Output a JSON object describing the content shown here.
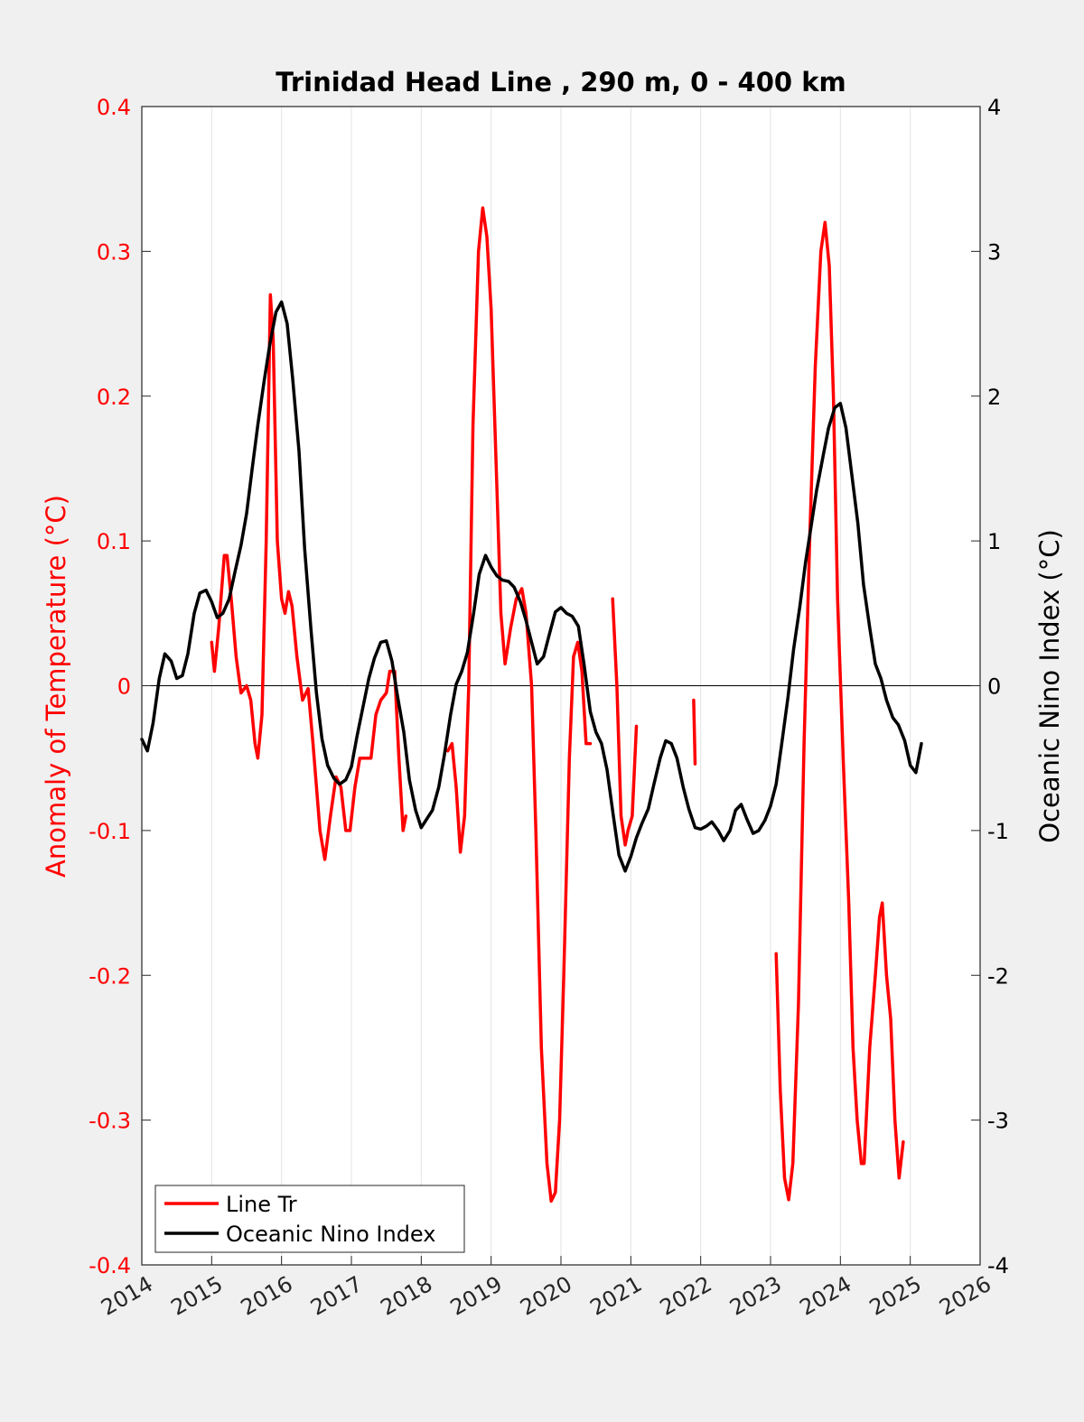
{
  "chart_data": {
    "type": "line",
    "title": "Trinidad Head Line , 290 m, 0 - 400 km",
    "xlim": [
      2014,
      2026
    ],
    "x_ticks": [
      "2014",
      "2015",
      "2016",
      "2017",
      "2018",
      "2019",
      "2020",
      "2021",
      "2022",
      "2023",
      "2024",
      "2025",
      "2026"
    ],
    "grid": "vertical",
    "legend_position": "bottom-left",
    "left_axis": {
      "label": "Anomaly of Temperature (°C)",
      "ylim": [
        -0.4,
        0.4
      ],
      "ticks": [
        "-0.4",
        "-0.3",
        "-0.2",
        "-0.1",
        "0",
        "0.1",
        "0.2",
        "0.3",
        "0.4"
      ],
      "color": "#ff0000"
    },
    "right_axis": {
      "label": "Oceanic Nino Index (°C)",
      "ylim": [
        -4,
        4
      ],
      "ticks": [
        "-4",
        "-3",
        "-2",
        "-1",
        "0",
        "1",
        "2",
        "3",
        "4"
      ],
      "color": "#000000"
    },
    "series": [
      {
        "name": "Line Tr",
        "axis": "left",
        "color": "#ff0000",
        "segments": [
          [
            [
              2015.0,
              0.03
            ],
            [
              2015.04,
              0.01
            ],
            [
              2015.1,
              0.04
            ],
            [
              2015.18,
              0.09
            ],
            [
              2015.22,
              0.09
            ],
            [
              2015.28,
              0.06
            ],
            [
              2015.35,
              0.02
            ],
            [
              2015.42,
              -0.005
            ],
            [
              2015.5,
              0.0
            ],
            [
              2015.56,
              -0.01
            ],
            [
              2015.62,
              -0.04
            ],
            [
              2015.66,
              -0.05
            ],
            [
              2015.72,
              -0.02
            ],
            [
              2015.78,
              0.1
            ],
            [
              2015.84,
              0.27
            ],
            [
              2015.88,
              0.24
            ],
            [
              2015.94,
              0.1
            ],
            [
              2016.0,
              0.06
            ],
            [
              2016.05,
              0.05
            ],
            [
              2016.1,
              0.065
            ],
            [
              2016.15,
              0.055
            ],
            [
              2016.22,
              0.02
            ],
            [
              2016.3,
              -0.01
            ],
            [
              2016.38,
              -0.002
            ],
            [
              2016.45,
              -0.04
            ],
            [
              2016.55,
              -0.1
            ],
            [
              2016.62,
              -0.12
            ],
            [
              2016.7,
              -0.09
            ],
            [
              2016.78,
              -0.063
            ],
            [
              2016.85,
              -0.07
            ],
            [
              2016.92,
              -0.1
            ],
            [
              2016.98,
              -0.1
            ],
            [
              2017.05,
              -0.07
            ],
            [
              2017.12,
              -0.05
            ],
            [
              2017.2,
              -0.05
            ],
            [
              2017.28,
              -0.05
            ],
            [
              2017.35,
              -0.02
            ],
            [
              2017.42,
              -0.01
            ],
            [
              2017.5,
              -0.005
            ],
            [
              2017.55,
              0.01
            ],
            [
              2017.62,
              0.01
            ],
            [
              2017.68,
              -0.05
            ],
            [
              2017.74,
              -0.1
            ],
            [
              2017.78,
              -0.09
            ]
          ],
          [
            [
              2018.38,
              -0.045
            ],
            [
              2018.44,
              -0.04
            ],
            [
              2018.5,
              -0.07
            ],
            [
              2018.56,
              -0.115
            ],
            [
              2018.62,
              -0.09
            ],
            [
              2018.68,
              0.0
            ],
            [
              2018.74,
              0.18
            ],
            [
              2018.82,
              0.3
            ],
            [
              2018.88,
              0.33
            ],
            [
              2018.94,
              0.31
            ],
            [
              2019.0,
              0.26
            ],
            [
              2019.08,
              0.14
            ],
            [
              2019.14,
              0.05
            ],
            [
              2019.2,
              0.015
            ],
            [
              2019.28,
              0.04
            ],
            [
              2019.36,
              0.06
            ],
            [
              2019.44,
              0.067
            ],
            [
              2019.5,
              0.05
            ],
            [
              2019.58,
              0.0
            ],
            [
              2019.64,
              -0.1
            ],
            [
              2019.72,
              -0.25
            ],
            [
              2019.8,
              -0.33
            ],
            [
              2019.86,
              -0.356
            ],
            [
              2019.92,
              -0.35
            ],
            [
              2019.98,
              -0.3
            ],
            [
              2020.04,
              -0.2
            ],
            [
              2020.12,
              -0.05
            ],
            [
              2020.18,
              0.02
            ],
            [
              2020.24,
              0.03
            ],
            [
              2020.3,
              0.01
            ],
            [
              2020.36,
              -0.04
            ],
            [
              2020.42,
              -0.04
            ]
          ],
          [
            [
              2020.74,
              0.06
            ],
            [
              2020.8,
              0.0
            ],
            [
              2020.86,
              -0.09
            ],
            [
              2020.92,
              -0.11
            ],
            [
              2020.96,
              -0.1
            ],
            [
              2021.02,
              -0.09
            ],
            [
              2021.08,
              -0.028
            ]
          ],
          [
            [
              2021.9,
              -0.01
            ],
            [
              2021.92,
              -0.054
            ]
          ],
          [
            [
              2023.08,
              -0.185
            ],
            [
              2023.14,
              -0.28
            ],
            [
              2023.2,
              -0.34
            ],
            [
              2023.26,
              -0.355
            ],
            [
              2023.32,
              -0.33
            ],
            [
              2023.4,
              -0.22
            ],
            [
              2023.48,
              -0.04
            ],
            [
              2023.56,
              0.1
            ],
            [
              2023.64,
              0.22
            ],
            [
              2023.72,
              0.3
            ],
            [
              2023.78,
              0.32
            ],
            [
              2023.84,
              0.29
            ],
            [
              2023.9,
              0.2
            ],
            [
              2023.96,
              0.06
            ],
            [
              2024.04,
              -0.05
            ],
            [
              2024.12,
              -0.15
            ],
            [
              2024.18,
              -0.25
            ],
            [
              2024.24,
              -0.3
            ],
            [
              2024.3,
              -0.33
            ],
            [
              2024.34,
              -0.33
            ],
            [
              2024.42,
              -0.25
            ],
            [
              2024.5,
              -0.2
            ],
            [
              2024.56,
              -0.16
            ],
            [
              2024.6,
              -0.15
            ],
            [
              2024.66,
              -0.2
            ],
            [
              2024.72,
              -0.23
            ],
            [
              2024.78,
              -0.3
            ],
            [
              2024.84,
              -0.34
            ],
            [
              2024.9,
              -0.315
            ]
          ]
        ]
      },
      {
        "name": "Oceanic Nino Index",
        "axis": "right",
        "color": "#000000",
        "segments": [
          [
            [
              2014.0,
              -0.37
            ],
            [
              2014.08,
              -0.45
            ],
            [
              2014.16,
              -0.26
            ],
            [
              2014.25,
              0.05
            ],
            [
              2014.33,
              0.22
            ],
            [
              2014.42,
              0.17
            ],
            [
              2014.5,
              0.05
            ],
            [
              2014.58,
              0.07
            ],
            [
              2014.66,
              0.22
            ],
            [
              2014.75,
              0.5
            ],
            [
              2014.83,
              0.64
            ],
            [
              2014.92,
              0.66
            ],
            [
              2015.0,
              0.58
            ],
            [
              2015.08,
              0.47
            ],
            [
              2015.16,
              0.5
            ],
            [
              2015.25,
              0.6
            ],
            [
              2015.33,
              0.78
            ],
            [
              2015.42,
              0.97
            ],
            [
              2015.5,
              1.19
            ],
            [
              2015.58,
              1.5
            ],
            [
              2015.66,
              1.8
            ],
            [
              2015.75,
              2.1
            ],
            [
              2015.83,
              2.35
            ],
            [
              2015.92,
              2.58
            ],
            [
              2016.0,
              2.65
            ],
            [
              2016.08,
              2.5
            ],
            [
              2016.16,
              2.12
            ],
            [
              2016.25,
              1.62
            ],
            [
              2016.33,
              0.95
            ],
            [
              2016.42,
              0.4
            ],
            [
              2016.5,
              -0.05
            ],
            [
              2016.58,
              -0.37
            ],
            [
              2016.66,
              -0.55
            ],
            [
              2016.75,
              -0.64
            ],
            [
              2016.83,
              -0.68
            ],
            [
              2016.92,
              -0.65
            ],
            [
              2017.0,
              -0.56
            ],
            [
              2017.08,
              -0.35
            ],
            [
              2017.16,
              -0.16
            ],
            [
              2017.25,
              0.05
            ],
            [
              2017.33,
              0.19
            ],
            [
              2017.42,
              0.3
            ],
            [
              2017.5,
              0.31
            ],
            [
              2017.58,
              0.17
            ],
            [
              2017.66,
              -0.07
            ],
            [
              2017.75,
              -0.32
            ],
            [
              2017.83,
              -0.65
            ],
            [
              2017.92,
              -0.86
            ],
            [
              2018.0,
              -0.98
            ],
            [
              2018.08,
              -0.92
            ],
            [
              2018.16,
              -0.86
            ],
            [
              2018.25,
              -0.7
            ],
            [
              2018.33,
              -0.48
            ],
            [
              2018.42,
              -0.2
            ],
            [
              2018.5,
              0.01
            ],
            [
              2018.58,
              0.1
            ],
            [
              2018.66,
              0.23
            ],
            [
              2018.75,
              0.5
            ],
            [
              2018.83,
              0.77
            ],
            [
              2018.92,
              0.9
            ],
            [
              2019.0,
              0.82
            ],
            [
              2019.08,
              0.76
            ],
            [
              2019.16,
              0.73
            ],
            [
              2019.25,
              0.72
            ],
            [
              2019.33,
              0.68
            ],
            [
              2019.42,
              0.58
            ],
            [
              2019.5,
              0.45
            ],
            [
              2019.58,
              0.3
            ],
            [
              2019.66,
              0.15
            ],
            [
              2019.75,
              0.2
            ],
            [
              2019.83,
              0.35
            ],
            [
              2019.92,
              0.51
            ],
            [
              2020.0,
              0.54
            ],
            [
              2020.08,
              0.5
            ],
            [
              2020.16,
              0.48
            ],
            [
              2020.25,
              0.41
            ],
            [
              2020.33,
              0.15
            ],
            [
              2020.42,
              -0.18
            ],
            [
              2020.5,
              -0.32
            ],
            [
              2020.58,
              -0.4
            ],
            [
              2020.66,
              -0.58
            ],
            [
              2020.75,
              -0.9
            ],
            [
              2020.83,
              -1.17
            ],
            [
              2020.92,
              -1.28
            ],
            [
              2021.0,
              -1.18
            ],
            [
              2021.08,
              -1.05
            ],
            [
              2021.16,
              -0.95
            ],
            [
              2021.25,
              -0.85
            ],
            [
              2021.33,
              -0.68
            ],
            [
              2021.42,
              -0.5
            ],
            [
              2021.5,
              -0.38
            ],
            [
              2021.58,
              -0.4
            ],
            [
              2021.66,
              -0.5
            ],
            [
              2021.75,
              -0.7
            ],
            [
              2021.83,
              -0.85
            ],
            [
              2021.92,
              -0.98
            ],
            [
              2022.0,
              -0.99
            ],
            [
              2022.08,
              -0.97
            ],
            [
              2022.16,
              -0.94
            ],
            [
              2022.25,
              -1.0
            ],
            [
              2022.33,
              -1.07
            ],
            [
              2022.42,
              -1.0
            ],
            [
              2022.5,
              -0.86
            ],
            [
              2022.58,
              -0.82
            ],
            [
              2022.66,
              -0.92
            ],
            [
              2022.75,
              -1.02
            ],
            [
              2022.83,
              -1.0
            ],
            [
              2022.92,
              -0.93
            ],
            [
              2023.0,
              -0.83
            ],
            [
              2023.08,
              -0.68
            ],
            [
              2023.16,
              -0.4
            ],
            [
              2023.25,
              -0.08
            ],
            [
              2023.33,
              0.25
            ],
            [
              2023.42,
              0.55
            ],
            [
              2023.5,
              0.85
            ],
            [
              2023.58,
              1.1
            ],
            [
              2023.66,
              1.35
            ],
            [
              2023.75,
              1.58
            ],
            [
              2023.83,
              1.78
            ],
            [
              2023.92,
              1.92
            ],
            [
              2024.0,
              1.95
            ],
            [
              2024.08,
              1.78
            ],
            [
              2024.16,
              1.47
            ],
            [
              2024.25,
              1.12
            ],
            [
              2024.33,
              0.7
            ],
            [
              2024.42,
              0.4
            ],
            [
              2024.5,
              0.15
            ],
            [
              2024.58,
              0.05
            ],
            [
              2024.66,
              -0.1
            ],
            [
              2024.75,
              -0.22
            ],
            [
              2024.83,
              -0.27
            ],
            [
              2024.92,
              -0.38
            ],
            [
              2025.0,
              -0.55
            ],
            [
              2025.08,
              -0.6
            ],
            [
              2025.16,
              -0.4
            ]
          ]
        ]
      }
    ]
  }
}
